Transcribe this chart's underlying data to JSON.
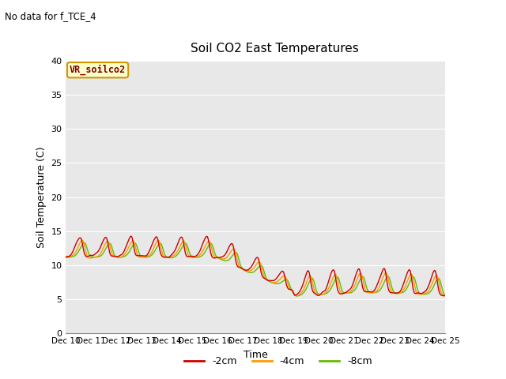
{
  "title": "Soil CO2 East Temperatures",
  "no_data_text": "No data for f_TCE_4",
  "vr_label": "VR_soilco2",
  "ylabel": "Soil Temperature (C)",
  "xlabel": "Time",
  "ylim": [
    0,
    40
  ],
  "yticks": [
    0,
    5,
    10,
    15,
    20,
    25,
    30,
    35,
    40
  ],
  "xtick_labels": [
    "Dec 10",
    "Dec 11",
    "Dec 12",
    "Dec 13",
    "Dec 14",
    "Dec 15",
    "Dec 16",
    "Dec 17",
    "Dec 18",
    "Dec 19",
    "Dec 20",
    "Dec 21",
    "Dec 22",
    "Dec 23",
    "Dec 24",
    "Dec 25"
  ],
  "colors": {
    "neg2cm": "#cc0000",
    "neg4cm": "#ff9900",
    "neg8cm": "#66bb00",
    "background": "#e8e8e8",
    "vr_box_bg": "#ffffcc",
    "vr_box_border": "#cc9900",
    "vr_text": "#800000"
  },
  "legend_labels": [
    "-2cm",
    "-4cm",
    "-8cm"
  ],
  "line_width": 1.0
}
